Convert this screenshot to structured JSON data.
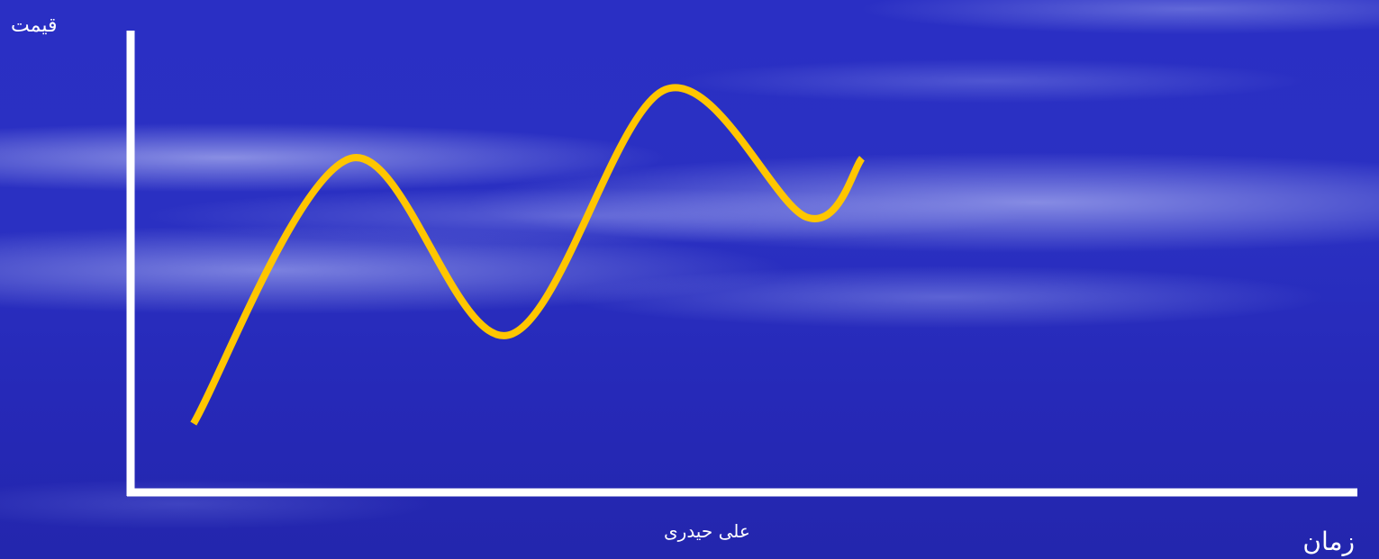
{
  "chart_data": {
    "type": "line",
    "title": "",
    "xlabel": "زمان",
    "ylabel": "قيمت",
    "axis_ticks": "none",
    "grid": false,
    "legend": "none",
    "series": [
      {
        "color": "#ffc600",
        "x": [
          0,
          1.0,
          2.0,
          3.0,
          3.9,
          4.25
        ],
        "y": [
          0.5,
          3.2,
          1.4,
          3.9,
          2.6,
          3.2
        ]
      }
    ],
    "xlim": [
      -0.4,
      7.4
    ],
    "ylim": [
      -0.2,
      4.5
    ]
  },
  "author": "على حيدری",
  "colors": {
    "background": "#2a2fc4",
    "axes": "#ffffff",
    "line": "#ffc600"
  }
}
